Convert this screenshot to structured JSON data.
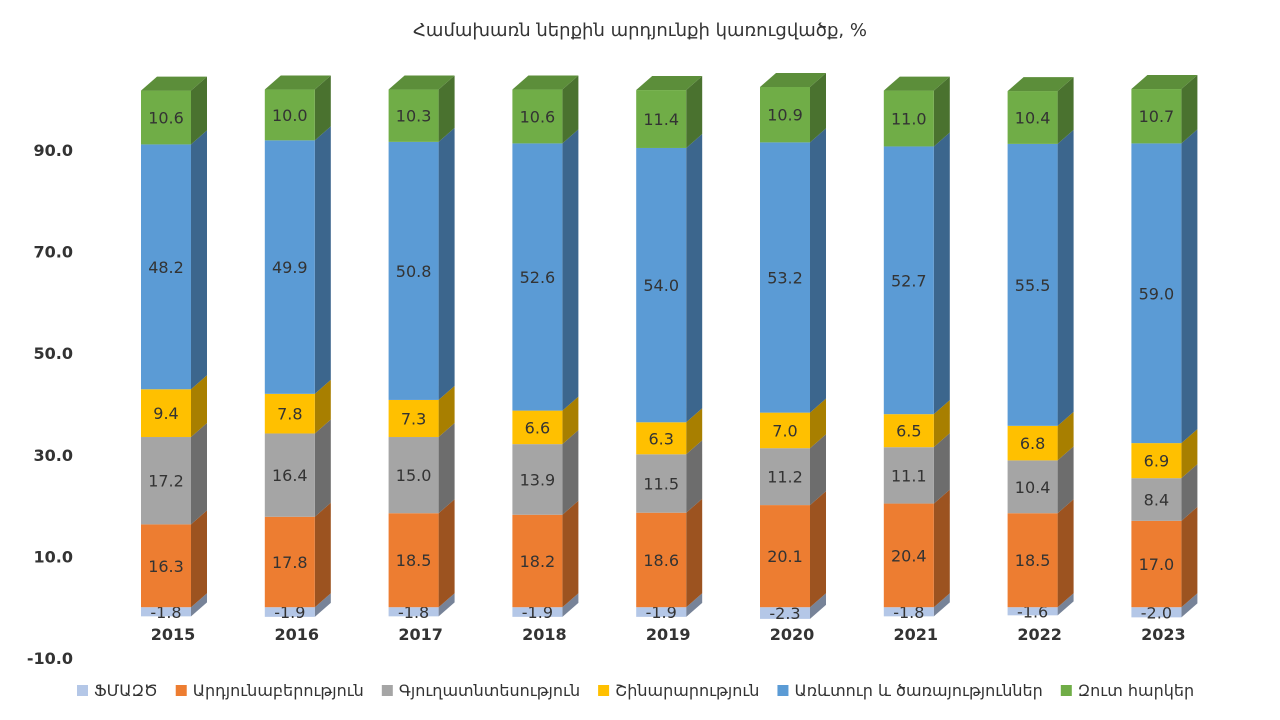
{
  "chart_data": {
    "type": "bar",
    "stacked": true,
    "style": "3d-stacked-column",
    "title": "Համախառն ներքին արդյունքի կառուցվածք, %",
    "categories": [
      "2015",
      "2016",
      "2017",
      "2018",
      "2019",
      "2020",
      "2021",
      "2022",
      "2023"
    ],
    "ylim": [
      -10,
      100
    ],
    "yticks": [
      "-10.0",
      "10.0",
      "30.0",
      "50.0",
      "70.0",
      "90.0"
    ],
    "ytick_values": [
      -10,
      10,
      30,
      50,
      70,
      90
    ],
    "grid": false,
    "legend_position": "bottom",
    "series": [
      {
        "name": "ՖՄԱԶԾ",
        "color": "#b4c7e7",
        "labels": [
          "-1.8",
          "-1.9",
          "-1.8",
          "-1.9",
          "-1.9",
          "-2.3",
          "-1.8",
          "-1.6",
          "-2.0"
        ],
        "values": [
          -1.8,
          -1.9,
          -1.8,
          -1.9,
          -1.9,
          -2.3,
          -1.8,
          -1.6,
          -2.0
        ]
      },
      {
        "name": "Արդյունաբերություն",
        "color": "#ed7d31",
        "labels": [
          "16.3",
          "17.8",
          "18.5",
          "18.2",
          "18.6",
          "20.1",
          "20.4",
          "18.5",
          "17.0"
        ],
        "values": [
          16.3,
          17.8,
          18.5,
          18.2,
          18.6,
          20.1,
          20.4,
          18.5,
          17.0
        ]
      },
      {
        "name": "Գյուղատնտեսություն",
        "color": "#a5a5a5",
        "labels": [
          "17.2",
          "16.4",
          "15.0",
          "13.9",
          "11.5",
          "11.2",
          "11.1",
          "10.4",
          "8.4"
        ],
        "values": [
          17.2,
          16.4,
          15.0,
          13.9,
          11.5,
          11.2,
          11.1,
          10.4,
          8.4
        ]
      },
      {
        "name": "Շինարարություն",
        "color": "#ffc000",
        "labels": [
          "9.4",
          "7.8",
          "7.3",
          "6.6",
          "6.3",
          "7.0",
          "6.5",
          "6.8",
          "6.9"
        ],
        "values": [
          9.4,
          7.8,
          7.3,
          6.6,
          6.3,
          7.0,
          6.5,
          6.8,
          6.9
        ]
      },
      {
        "name": "Առևտուր և ծառայություններ",
        "color": "#5b9bd5",
        "labels": [
          "48.2",
          "49.9",
          "50.8",
          "52.6",
          "54.0",
          "53.2",
          "52.7",
          "55.5",
          "59.0"
        ],
        "values": [
          48.2,
          49.9,
          50.8,
          52.6,
          54.0,
          53.2,
          52.7,
          55.5,
          59.0
        ]
      },
      {
        "name": "Զուտ հարկեր",
        "color": "#70ad47",
        "labels": [
          "10.6",
          "10.0",
          "10.3",
          "10.6",
          "11.4",
          "10.9",
          "11.0",
          "10.4",
          "10.7"
        ],
        "values": [
          10.6,
          10.0,
          10.3,
          10.6,
          11.4,
          10.9,
          11.0,
          10.4,
          10.7
        ]
      }
    ]
  }
}
